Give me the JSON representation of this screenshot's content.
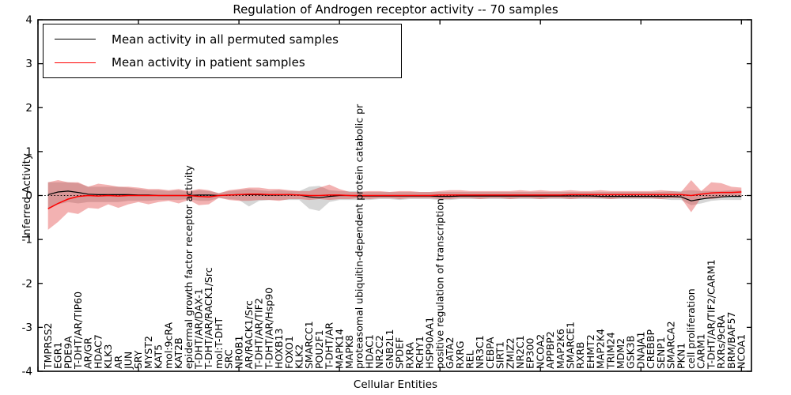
{
  "chart_data": {
    "type": "line",
    "title": "Regulation of Androgen receptor activity -- 70 samples",
    "xlabel": "Cellular Entities",
    "ylabel": "Inferred Activity",
    "ylim": [
      -4,
      4
    ],
    "yticks": [
      4,
      3,
      2,
      1,
      0,
      -1,
      -2,
      -3,
      -4
    ],
    "xticks": [
      0,
      10,
      20,
      30,
      40,
      50,
      60,
      70
    ],
    "grid": false,
    "zero_line": true,
    "legend_position": "upper left",
    "categories": [
      "TMPRSS2",
      "EGR1",
      "PDE9A",
      "T-DHT/AR/TIP60",
      "AR/GR",
      "HDAC7",
      "KLK3",
      "AR",
      "JUN",
      "SRY",
      "MYST2",
      "KAT5",
      "mol:9cRA",
      "KAT2B",
      "epidermal growth factor receptor activity",
      "T-DHT/AR/DAX-1",
      "T-DHT/AR/RACK1/Src",
      "mol:T-DHT",
      "SRC",
      "NR0B1",
      "AR/RACK1/Src",
      "T-DHT/AR/TIF2",
      "T-DHT/AR/Hsp90",
      "HOXB13",
      "FOXO1",
      "KLK2",
      "SMARCC1",
      "POU2F1",
      "T-DHT/AR",
      "MAPK14",
      "MAPK8",
      "proteasomal ubiquitin-dependent protein catabolic pr",
      "HDAC1",
      "NR2C2",
      "GNB2L1",
      "SPDEF",
      "RXRA",
      "RCHY1",
      "HSP90AA1",
      "positive regulation of transcription",
      "GATA2",
      "RXRG",
      "REL",
      "NR3C1",
      "CEBPA",
      "SIRT1",
      "ZMIZ2",
      "NR2C1",
      "EP300",
      "NCOA2",
      "APPBP2",
      "MAP2K6",
      "SMARCE1",
      "RXRB",
      "EHMT2",
      "MAP2K4",
      "TRIM24",
      "MDM2",
      "GSK3B",
      "DNAJA1",
      "CREBBP",
      "SENP1",
      "SMARCA2",
      "PKN1",
      "cell proliferation",
      "CARM1",
      "T-DHT/AR/TIF2/CARM1",
      "RXRs/9cRA",
      "BRM/BAF57",
      "NCOA1"
    ],
    "series": [
      {
        "name": "Mean activity in all permuted samples",
        "color": "#000000",
        "band_color": "#999999",
        "band_opacity": 0.4,
        "values": [
          0.02,
          0.08,
          0.1,
          0.07,
          0.03,
          0.02,
          0.02,
          0.02,
          0.02,
          0.01,
          0.01,
          0.0,
          0.0,
          0.0,
          0.0,
          0.01,
          0.01,
          0.0,
          0.01,
          0.02,
          0.02,
          0.02,
          0.01,
          0.01,
          0.02,
          0.01,
          -0.03,
          -0.05,
          -0.02,
          0.0,
          0.0,
          -0.01,
          -0.01,
          -0.01,
          -0.01,
          -0.01,
          -0.01,
          -0.01,
          -0.01,
          -0.02,
          -0.02,
          -0.01,
          -0.01,
          -0.01,
          -0.01,
          -0.01,
          -0.01,
          -0.01,
          -0.01,
          -0.01,
          -0.01,
          -0.01,
          -0.01,
          -0.01,
          -0.01,
          -0.02,
          -0.02,
          -0.02,
          -0.02,
          -0.02,
          -0.02,
          -0.02,
          -0.02,
          -0.03,
          -0.12,
          -0.08,
          -0.05,
          -0.03,
          -0.02,
          -0.02
        ],
        "band_upper": [
          0.3,
          0.3,
          0.3,
          0.28,
          0.2,
          0.2,
          0.2,
          0.2,
          0.18,
          0.15,
          0.12,
          0.12,
          0.1,
          0.12,
          0.08,
          0.12,
          0.1,
          0.06,
          0.1,
          0.12,
          0.15,
          0.12,
          0.1,
          0.12,
          0.1,
          0.1,
          0.2,
          0.22,
          0.12,
          0.1,
          0.1,
          0.1,
          0.08,
          0.08,
          0.08,
          0.08,
          0.08,
          0.08,
          0.08,
          0.08,
          0.08,
          0.08,
          0.08,
          0.08,
          0.08,
          0.08,
          0.08,
          0.08,
          0.08,
          0.08,
          0.08,
          0.08,
          0.08,
          0.08,
          0.08,
          0.08,
          0.08,
          0.08,
          0.08,
          0.08,
          0.08,
          0.08,
          0.1,
          0.1,
          0.12,
          0.1,
          0.1,
          0.1,
          0.12,
          0.12
        ],
        "band_lower": [
          -0.32,
          -0.2,
          -0.15,
          -0.18,
          -0.15,
          -0.15,
          -0.15,
          -0.15,
          -0.12,
          -0.12,
          -0.12,
          -0.1,
          -0.1,
          -0.1,
          -0.08,
          -0.12,
          -0.12,
          -0.06,
          -0.08,
          -0.1,
          -0.25,
          -0.12,
          -0.1,
          -0.1,
          -0.1,
          -0.1,
          -0.3,
          -0.35,
          -0.15,
          -0.1,
          -0.1,
          -0.1,
          -0.1,
          -0.08,
          -0.08,
          -0.1,
          -0.08,
          -0.08,
          -0.08,
          -0.1,
          -0.1,
          -0.08,
          -0.08,
          -0.08,
          -0.08,
          -0.08,
          -0.08,
          -0.08,
          -0.08,
          -0.08,
          -0.08,
          -0.08,
          -0.08,
          -0.08,
          -0.08,
          -0.08,
          -0.08,
          -0.08,
          -0.08,
          -0.08,
          -0.08,
          -0.08,
          -0.1,
          -0.1,
          -0.22,
          -0.18,
          -0.12,
          -0.1,
          -0.1,
          -0.1
        ]
      },
      {
        "name": "Mean activity in patient samples",
        "color": "#ff0000",
        "band_color": "#dd2222",
        "band_opacity": 0.35,
        "values": [
          -0.3,
          -0.18,
          -0.08,
          -0.02,
          0.0,
          -0.01,
          0.0,
          -0.01,
          0.0,
          0.0,
          0.0,
          0.0,
          0.0,
          0.0,
          0.0,
          -0.02,
          -0.03,
          0.0,
          0.01,
          0.02,
          0.03,
          0.03,
          0.02,
          0.02,
          0.02,
          0.01,
          0.0,
          0.0,
          0.01,
          0.01,
          0.0,
          0.0,
          0.0,
          0.0,
          0.0,
          0.0,
          0.0,
          0.0,
          0.0,
          0.01,
          0.01,
          0.01,
          0.01,
          0.01,
          0.01,
          0.01,
          0.01,
          0.01,
          0.01,
          0.01,
          0.01,
          0.01,
          0.02,
          0.02,
          0.02,
          0.02,
          0.02,
          0.02,
          0.02,
          0.02,
          0.02,
          0.02,
          0.02,
          0.02,
          0.0,
          0.03,
          0.06,
          0.07,
          0.07,
          0.08
        ],
        "band_upper": [
          0.3,
          0.35,
          0.3,
          0.3,
          0.2,
          0.27,
          0.24,
          0.2,
          0.2,
          0.18,
          0.15,
          0.15,
          0.12,
          0.15,
          0.1,
          0.15,
          0.12,
          0.05,
          0.12,
          0.15,
          0.18,
          0.18,
          0.15,
          0.15,
          0.12,
          0.1,
          0.1,
          0.18,
          0.25,
          0.15,
          0.08,
          0.08,
          0.1,
          0.1,
          0.08,
          0.1,
          0.1,
          0.08,
          0.08,
          0.1,
          0.12,
          0.12,
          0.1,
          0.1,
          0.1,
          0.1,
          0.1,
          0.12,
          0.1,
          0.12,
          0.1,
          0.1,
          0.12,
          0.1,
          0.1,
          0.12,
          0.1,
          0.1,
          0.1,
          0.1,
          0.1,
          0.12,
          0.1,
          0.08,
          0.35,
          0.1,
          0.3,
          0.28,
          0.2,
          0.18
        ],
        "band_lower": [
          -0.78,
          -0.6,
          -0.38,
          -0.42,
          -0.28,
          -0.3,
          -0.2,
          -0.28,
          -0.2,
          -0.15,
          -0.2,
          -0.15,
          -0.12,
          -0.18,
          -0.1,
          -0.22,
          -0.2,
          -0.05,
          -0.1,
          -0.12,
          -0.12,
          -0.1,
          -0.1,
          -0.12,
          -0.08,
          -0.08,
          -0.1,
          -0.08,
          -0.1,
          -0.08,
          -0.08,
          -0.06,
          -0.08,
          -0.06,
          -0.06,
          -0.08,
          -0.06,
          -0.06,
          -0.06,
          -0.08,
          -0.08,
          -0.06,
          -0.06,
          -0.08,
          -0.06,
          -0.06,
          -0.08,
          -0.06,
          -0.06,
          -0.08,
          -0.06,
          -0.06,
          -0.08,
          -0.06,
          -0.06,
          -0.06,
          -0.08,
          -0.06,
          -0.06,
          -0.06,
          -0.06,
          -0.08,
          -0.06,
          -0.06,
          -0.38,
          -0.05,
          -0.08,
          -0.05,
          0.0,
          -0.02
        ]
      }
    ]
  },
  "colors": {
    "axis": "#000000",
    "background": "#ffffff",
    "zero_line": "#000000"
  }
}
